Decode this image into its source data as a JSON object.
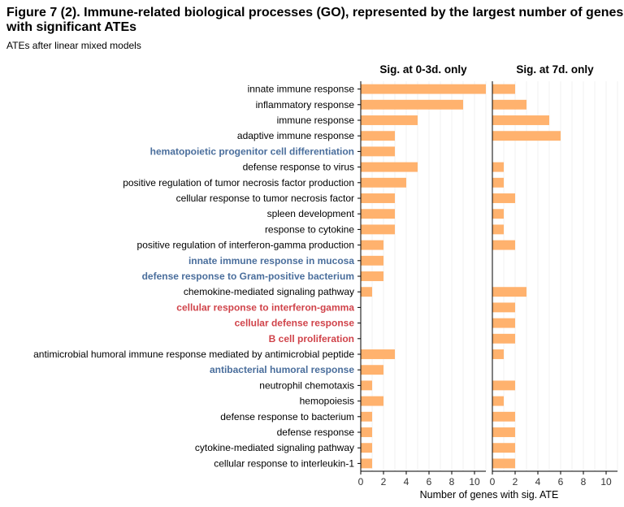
{
  "title": "Figure 7 (2). Immune-related biological processes (GO), represented by the largest number of genes with significant ATEs",
  "subtitle": "ATEs after linear mixed models",
  "colors": {
    "bar": "#FFB26E",
    "blue_label": "#4A6E9C",
    "red_label": "#D0434A",
    "black_label": "#000000",
    "grid": "#EBEBEB",
    "axis": "#000000"
  },
  "chart_data": {
    "type": "bar",
    "orientation": "horizontal",
    "xlabel": "Number of genes with sig. ATE",
    "xlim": [
      0,
      11
    ],
    "xticks": [
      "0",
      "2",
      "4",
      "6",
      "8",
      "10"
    ],
    "categories": [
      {
        "label": "innate immune response",
        "color": "black"
      },
      {
        "label": "inflammatory response",
        "color": "black"
      },
      {
        "label": "immune response",
        "color": "black"
      },
      {
        "label": "adaptive immune response",
        "color": "black"
      },
      {
        "label": "hematopoietic progenitor cell differentiation",
        "color": "blue"
      },
      {
        "label": "defense response to virus",
        "color": "black"
      },
      {
        "label": "positive regulation of tumor necrosis factor production",
        "color": "black"
      },
      {
        "label": "cellular response to tumor necrosis factor",
        "color": "black"
      },
      {
        "label": "spleen development",
        "color": "black"
      },
      {
        "label": "response to cytokine",
        "color": "black"
      },
      {
        "label": "positive regulation of interferon-gamma production",
        "color": "black"
      },
      {
        "label": "innate immune response in mucosa",
        "color": "blue"
      },
      {
        "label": "defense response to Gram-positive bacterium",
        "color": "blue"
      },
      {
        "label": "chemokine-mediated signaling pathway",
        "color": "black"
      },
      {
        "label": "cellular response to interferon-gamma",
        "color": "red"
      },
      {
        "label": "cellular defense response",
        "color": "red"
      },
      {
        "label": "B cell proliferation",
        "color": "red"
      },
      {
        "label": "antimicrobial humoral immune response mediated by antimicrobial peptide",
        "color": "black"
      },
      {
        "label": "antibacterial humoral response",
        "color": "blue"
      },
      {
        "label": "neutrophil chemotaxis",
        "color": "black"
      },
      {
        "label": "hemopoiesis",
        "color": "black"
      },
      {
        "label": "defense response to bacterium",
        "color": "black"
      },
      {
        "label": "defense response",
        "color": "black"
      },
      {
        "label": "cytokine-mediated signaling pathway",
        "color": "black"
      },
      {
        "label": "cellular response to interleukin-1",
        "color": "black"
      }
    ],
    "series": [
      {
        "name": "Sig. at 0-3d. only",
        "values": [
          11,
          9,
          5,
          3,
          3,
          5,
          4,
          3,
          3,
          3,
          2,
          2,
          2,
          1,
          0,
          0,
          0,
          3,
          2,
          1,
          2,
          1,
          1,
          1,
          1
        ]
      },
      {
        "name": "Sig. at 7d. only",
        "values": [
          2,
          3,
          5,
          6,
          0,
          1,
          1,
          2,
          1,
          1,
          2,
          0,
          0,
          3,
          2,
          2,
          2,
          1,
          0,
          2,
          1,
          2,
          2,
          2,
          2
        ]
      }
    ],
    "grid": true
  }
}
